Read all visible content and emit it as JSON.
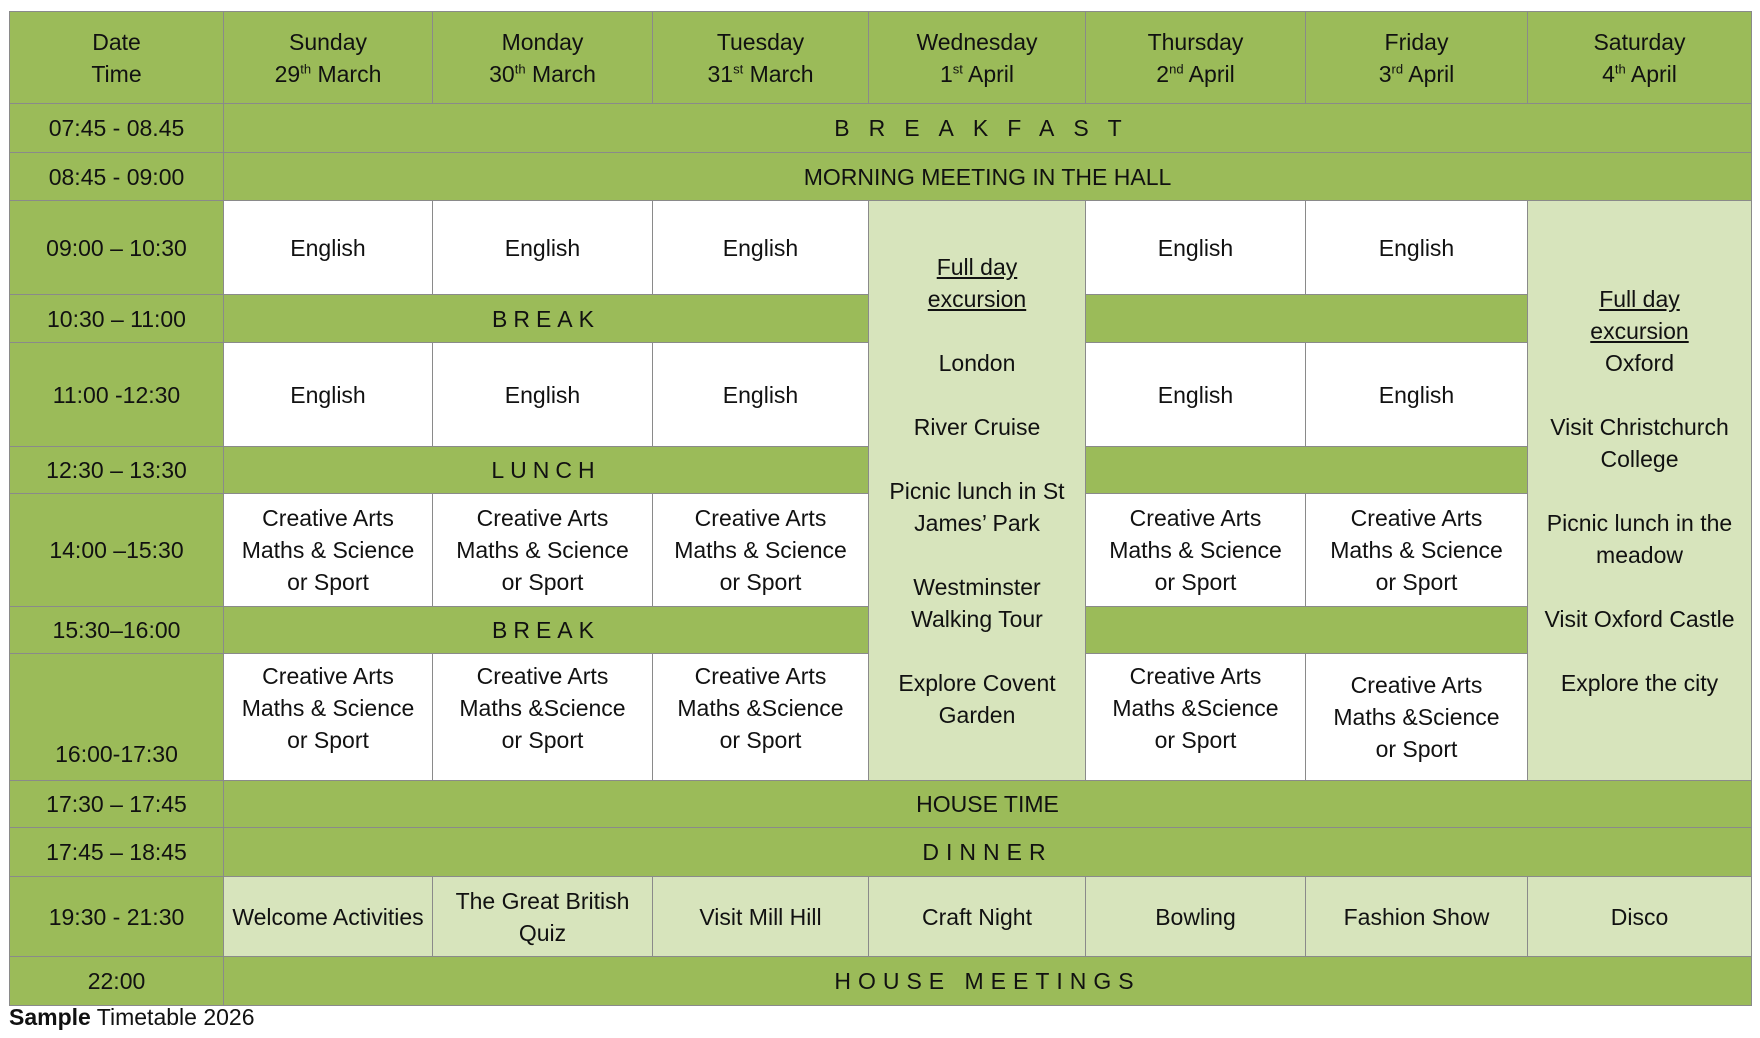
{
  "header": {
    "corner": [
      "Date",
      "Time"
    ],
    "days": [
      {
        "day": "Sunday",
        "num": "29",
        "suffix": "th",
        "month": " March"
      },
      {
        "day": "Monday",
        "num": "30",
        "suffix": "th",
        "month": " March"
      },
      {
        "day": "Tuesday",
        "num": "31",
        "suffix": "st",
        "month": " March"
      },
      {
        "day": "Wednesday",
        "num": "1",
        "suffix": "st",
        "month": " April"
      },
      {
        "day": "Thursday",
        "num": "2",
        "suffix": "nd",
        "month": " April"
      },
      {
        "day": "Friday",
        "num": "3",
        "suffix": "rd",
        "month": " April"
      },
      {
        "day": "Saturday",
        "num": "4",
        "suffix": "th",
        "month": " April"
      }
    ]
  },
  "times": [
    "07:45 - 08.45",
    "08:45 - 09:00",
    "09:00 – 10:30",
    "10:30 – 11:00",
    "11:00 -12:30",
    "12:30 – 13:30",
    "14:00 –15:30",
    "15:30–16:00",
    "16:00-17:30",
    "17:30 – 17:45",
    "17:45 – 18:45",
    "19:30 - 21:30",
    "22:00"
  ],
  "spans": {
    "breakfast": "BREAKFAST",
    "morning_meeting": "MORNING MEETING IN THE HALL",
    "break": "BREAK",
    "lunch": "LUNCH",
    "house_time": "HOUSE TIME",
    "dinner": "DINNER",
    "house_meetings": "HOUSE MEETINGS"
  },
  "lessons": {
    "english": "English",
    "ca_line1": "Creative Arts",
    "ca_line2": "Maths & Science",
    "ca_line2b": "Maths &Science",
    "ca_line3": "or Sport"
  },
  "wednesday": {
    "title1": "Full day",
    "title2": "excursion",
    "items": [
      "London",
      "River Cruise",
      "Picnic lunch in St James’ Park",
      "Westminster Walking Tour",
      "Explore Covent Garden"
    ]
  },
  "saturday": {
    "title1": "Full day",
    "title2": "excursion",
    "place": "Oxford",
    "items": [
      "Visit Christchurch College",
      "Picnic lunch in the meadow",
      "Visit Oxford Castle",
      "Explore the city"
    ]
  },
  "evening": [
    "Welcome Activities",
    "The Great British Quiz",
    "Visit Mill Hill",
    "Craft Night",
    "Bowling",
    "Fashion Show",
    "Disco"
  ],
  "caption": {
    "bold": "Sample",
    "rest": " Timetable 2026"
  },
  "colors": {
    "green": "#9bbb59",
    "light_green": "#d7e4bc",
    "border": "#8a8a8a"
  }
}
